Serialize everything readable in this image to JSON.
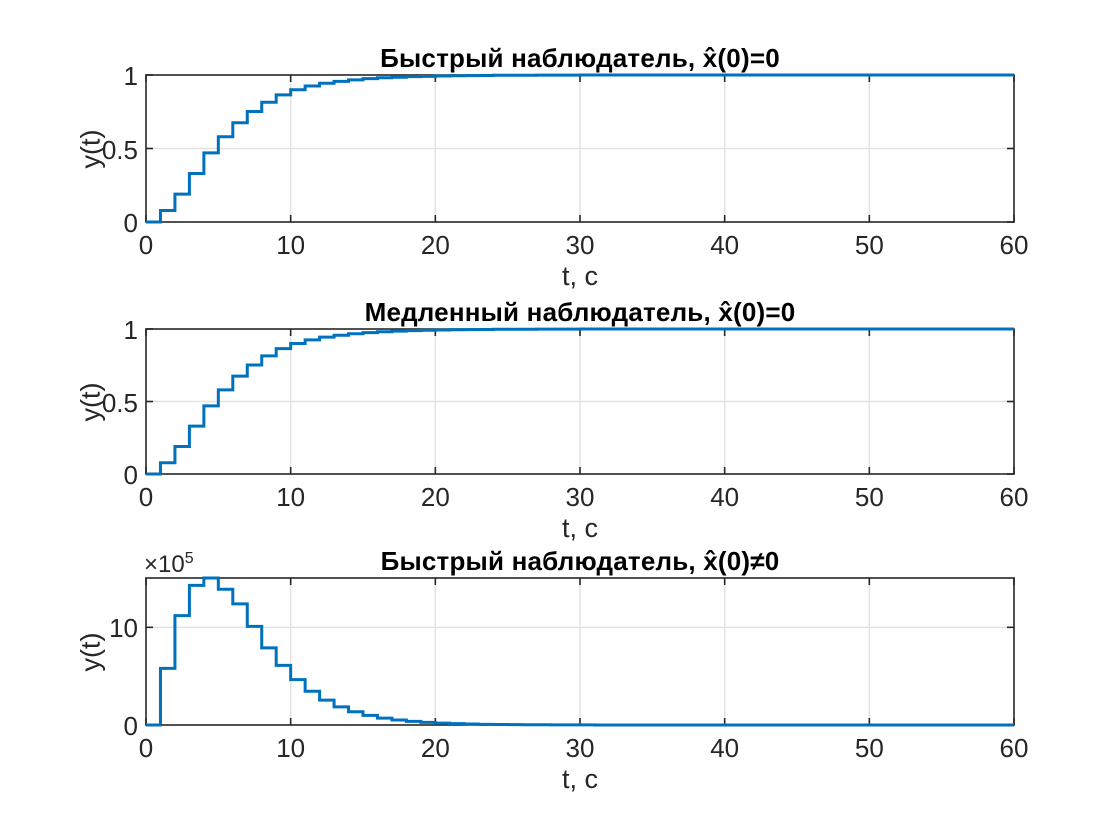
{
  "figure": {
    "background": "#ffffff",
    "line_color": "#0072BD",
    "axis_color": "#262626",
    "grid_color": "#e2e2e2",
    "tick_label_color": "#262626",
    "title_color": "#000000"
  },
  "chart_data": [
    {
      "type": "line",
      "subtype": "stairs",
      "title": "Быстрый наблюдатель, x̂(0)=0",
      "xlabel": "t, с",
      "ylabel": "y(t)",
      "xlim": [
        0,
        60
      ],
      "ylim": [
        0,
        1
      ],
      "xticks": [
        0,
        10,
        20,
        30,
        40,
        50,
        60
      ],
      "xtick_labels": [
        "0",
        "10",
        "20",
        "30",
        "40",
        "50",
        "60"
      ],
      "yticks": [
        0,
        0.5,
        1
      ],
      "ytick_labels": [
        "0",
        "0.5",
        "1"
      ],
      "grid": true,
      "legend": null,
      "x_step": 1,
      "values": [
        0,
        0.078,
        0.19,
        0.33,
        0.47,
        0.58,
        0.675,
        0.752,
        0.815,
        0.865,
        0.9,
        0.925,
        0.944,
        0.957,
        0.967,
        0.975,
        0.981,
        0.985,
        0.989,
        0.991,
        0.993,
        0.995,
        0.996,
        0.997,
        0.998,
        0.9983,
        0.9987,
        0.999,
        0.9993,
        0.9994,
        0.9996,
        0.9997,
        0.9997,
        0.9998,
        0.9998,
        0.9999,
        0.9999,
        0.9999,
        1,
        1,
        1,
        1,
        1,
        1,
        1,
        1,
        1,
        1,
        1,
        1,
        1,
        1,
        1,
        1,
        1,
        1,
        1,
        1,
        1,
        1,
        1
      ]
    },
    {
      "type": "line",
      "subtype": "stairs",
      "title": "Медленный наблюдатель, x̂(0)=0",
      "xlabel": "t, с",
      "ylabel": "y(t)",
      "xlim": [
        0,
        60
      ],
      "ylim": [
        0,
        1
      ],
      "xticks": [
        0,
        10,
        20,
        30,
        40,
        50,
        60
      ],
      "xtick_labels": [
        "0",
        "10",
        "20",
        "30",
        "40",
        "50",
        "60"
      ],
      "yticks": [
        0,
        0.5,
        1
      ],
      "ytick_labels": [
        "0",
        "0.5",
        "1"
      ],
      "grid": true,
      "legend": null,
      "x_step": 1,
      "values": [
        0,
        0.078,
        0.19,
        0.33,
        0.47,
        0.58,
        0.675,
        0.752,
        0.815,
        0.865,
        0.9,
        0.925,
        0.944,
        0.957,
        0.967,
        0.975,
        0.981,
        0.985,
        0.989,
        0.991,
        0.993,
        0.995,
        0.996,
        0.997,
        0.998,
        0.9983,
        0.9987,
        0.999,
        0.9993,
        0.9994,
        0.9996,
        0.9997,
        0.9997,
        0.9998,
        0.9998,
        0.9999,
        0.9999,
        0.9999,
        1,
        1,
        1,
        1,
        1,
        1,
        1,
        1,
        1,
        1,
        1,
        1,
        1,
        1,
        1,
        1,
        1,
        1,
        1,
        1,
        1,
        1,
        1
      ]
    },
    {
      "type": "line",
      "subtype": "stairs",
      "title": "Быстрый наблюдатель, x̂(0)≠0",
      "xlabel": "t, с",
      "ylabel": "y(t)",
      "y_multiplier": "×10⁵",
      "y_multiplier_base": "×10",
      "y_multiplier_exp": "5",
      "xlim": [
        0,
        60
      ],
      "ylim": [
        0,
        15.05
      ],
      "xticks": [
        0,
        10,
        20,
        30,
        40,
        50,
        60
      ],
      "xtick_labels": [
        "0",
        "10",
        "20",
        "30",
        "40",
        "50",
        "60"
      ],
      "yticks": [
        0,
        10
      ],
      "ytick_labels": [
        "0",
        "10"
      ],
      "grid": true,
      "legend": null,
      "x_step": 1,
      "values": [
        0,
        5.8,
        11.2,
        14.3,
        15.05,
        13.9,
        12.4,
        10.1,
        7.9,
        6.1,
        4.65,
        3.45,
        2.55,
        1.85,
        1.35,
        0.98,
        0.71,
        0.51,
        0.37,
        0.27,
        0.19,
        0.14,
        0.1,
        0.07,
        0.05,
        0.04,
        0.03,
        0.02,
        0.015,
        0.01,
        0.008,
        0.006,
        0.004,
        0.003,
        0.002,
        0.002,
        0.001,
        0.001,
        0.001,
        0,
        0,
        0,
        0,
        0,
        0,
        0,
        0,
        0,
        0,
        0,
        0,
        0,
        0,
        0,
        0,
        0,
        0,
        0,
        0,
        0,
        0
      ]
    }
  ]
}
